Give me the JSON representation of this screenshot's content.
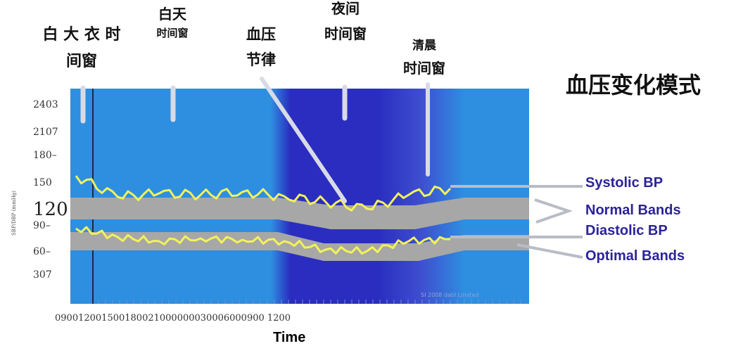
{
  "chart_data": {
    "type": "line",
    "title": "血压变化模式",
    "xlabel": "Time",
    "ylabel": "SBP/DBP (mmHg)",
    "y_tick_labels": [
      "2403",
      "2107",
      "180–",
      "150",
      "120",
      "90–",
      "60–",
      "307"
    ],
    "x_tick_text": "090012001500180021000000030006000900 1200",
    "x": [
      "09:00",
      "12:00",
      "15:00",
      "18:00",
      "21:00",
      "00:00",
      "03:00",
      "06:00",
      "09:00",
      "12:00"
    ],
    "series": [
      {
        "name": "Systolic BP",
        "color": "#f2f25a",
        "values": [
          165,
          135,
          140,
          138,
          142,
          136,
          128,
          118,
          138,
          147
        ]
      },
      {
        "name": "Diastolic BP",
        "color": "#f2f25a",
        "values": [
          90,
          78,
          72,
          76,
          74,
          72,
          60,
          58,
          72,
          75
        ]
      }
    ],
    "bands": [
      {
        "name": "Normal Bands",
        "color": "#a7a7a7"
      },
      {
        "name": "Optimal Bands",
        "color": "#a7a7a7"
      }
    ],
    "annotations": [
      {
        "name": "white-coat-window",
        "lines": [
          "白 大 衣 时",
          "间窗"
        ]
      },
      {
        "name": "daytime-window",
        "lines": [
          "白天",
          "时间窗"
        ]
      },
      {
        "name": "bp-rhythm",
        "lines": [
          "血压",
          "节律"
        ]
      },
      {
        "name": "night-window",
        "lines": [
          "夜间",
          "时间窗"
        ]
      },
      {
        "name": "early-morning-window",
        "lines": [
          "清晨",
          "时间窗"
        ]
      }
    ],
    "legend_labels": [
      "Systolic BP",
      "Normal Bands",
      "Diastolic BP",
      "Optimal Bands"
    ],
    "credit": "SI 2008 dabl Limited",
    "colors": {
      "day_background": "#2e8fe0",
      "night_background": "#2a2dbf",
      "band": "#a7a7a7",
      "line": "#f2f25a",
      "legend_text": "#2b2399"
    },
    "grid": false,
    "legend_position": "right"
  }
}
